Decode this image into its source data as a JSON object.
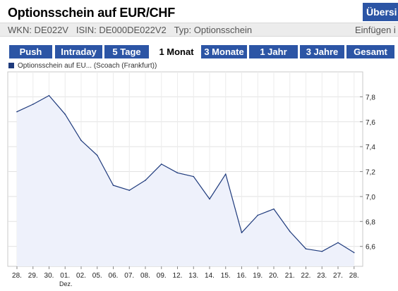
{
  "header": {
    "title": "Optionsschein auf EUR/CHF",
    "overview_label": "Übersi"
  },
  "info": {
    "wkn": "WKN: DE022V",
    "isin": "ISIN: DE000DE022V2",
    "type": "Typ: Optionsschein",
    "add_label": "Einfügen i"
  },
  "tabs": [
    {
      "label": "Push",
      "active": false
    },
    {
      "label": "Intraday",
      "active": false
    },
    {
      "label": "5 Tage",
      "active": false
    },
    {
      "label": "1 Monat",
      "active": true
    },
    {
      "label": "3 Monate",
      "active": false
    },
    {
      "label": "1 Jahr",
      "active": false
    },
    {
      "label": "3 Jahre",
      "active": false
    },
    {
      "label": "Gesamt",
      "active": false
    }
  ],
  "colors": {
    "tab_blue": "#2c55a5",
    "line": "#1e3a7c",
    "fill": "#eef1fb"
  },
  "chart_data": {
    "type": "area",
    "legend": "Optionsschein auf EU... (Scoach (Frankfurt))",
    "x": [
      "28.",
      "29.",
      "30.",
      "01.",
      "02.",
      "05.",
      "06.",
      "07.",
      "08.",
      "09.",
      "12.",
      "13.",
      "14.",
      "15.",
      "16.",
      "19.",
      "20.",
      "21.",
      "22.",
      "23.",
      "27.",
      "28."
    ],
    "x_sublabels": {
      "01.": "Dez."
    },
    "values": [
      7.68,
      7.74,
      7.81,
      7.66,
      7.45,
      7.33,
      7.09,
      7.05,
      7.13,
      7.26,
      7.19,
      7.16,
      6.98,
      7.18,
      6.71,
      6.85,
      6.9,
      6.72,
      6.58,
      6.56,
      6.63,
      6.55
    ],
    "yticks": [
      "6,6",
      "6,8",
      "7,0",
      "7,2",
      "7,4",
      "7,6",
      "7,8"
    ],
    "ylim": [
      6.44,
      8.0
    ],
    "grid": true,
    "axis_position": "right"
  }
}
